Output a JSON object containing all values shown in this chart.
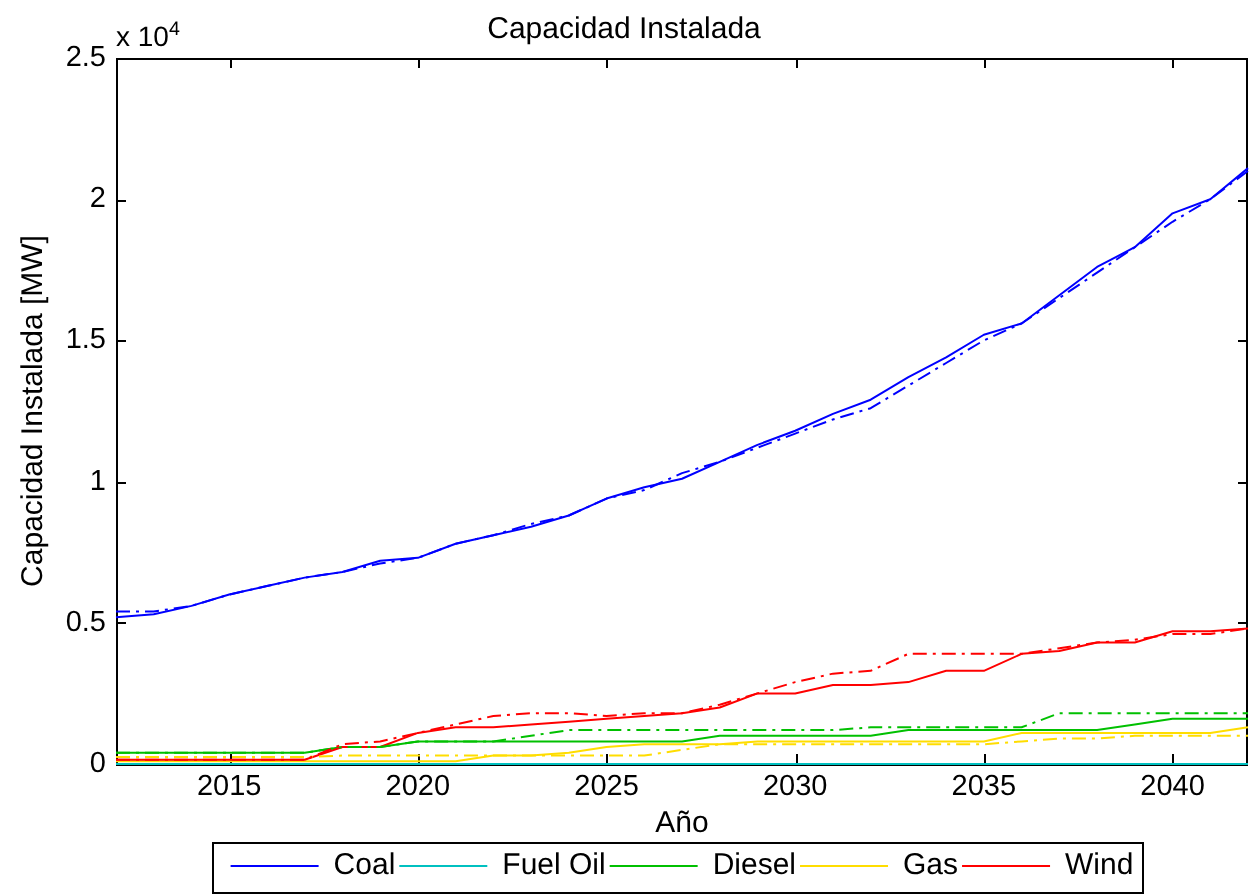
{
  "chart_data": {
    "type": "line",
    "title": "Capacidad Instalada",
    "xlabel": "Año",
    "ylabel": "Capacidad Instalada [MW]",
    "annotations": [
      "x 10$^{4}$"
    ],
    "x": [
      2012,
      2013,
      2014,
      2015,
      2016,
      2017,
      2018,
      2019,
      2020,
      2021,
      2022,
      2023,
      2024,
      2025,
      2026,
      2027,
      2028,
      2029,
      2030,
      2031,
      2032,
      2033,
      2034,
      2035,
      2036,
      2037,
      2038,
      2039,
      2040,
      2041,
      2042
    ],
    "series": [
      {
        "name": "Coal",
        "color": "#0000ff",
        "line_style": "solid",
        "values": [
          0.52,
          0.53,
          0.56,
          0.6,
          0.63,
          0.66,
          0.68,
          0.72,
          0.73,
          0.78,
          0.81,
          0.84,
          0.88,
          0.94,
          0.98,
          1.01,
          1.07,
          1.13,
          1.18,
          1.24,
          1.29,
          1.37,
          1.44,
          1.52,
          1.56,
          1.66,
          1.76,
          1.83,
          1.95,
          2.0,
          2.11
        ]
      },
      {
        "name": "Fuel Oil",
        "color": "#00c0c0",
        "line_style": "solid",
        "values": [
          0,
          0,
          0,
          0,
          0,
          0,
          0,
          0,
          0,
          0,
          0,
          0,
          0,
          0,
          0,
          0,
          0,
          0,
          0,
          0,
          0,
          0,
          0,
          0,
          0,
          0,
          0,
          0,
          0,
          0,
          0
        ]
      },
      {
        "name": "Diesel",
        "color": "#00c000",
        "line_style": "solid",
        "values": [
          0.04,
          0.04,
          0.04,
          0.04,
          0.04,
          0.04,
          0.06,
          0.06,
          0.08,
          0.08,
          0.08,
          0.08,
          0.08,
          0.08,
          0.08,
          0.08,
          0.1,
          0.1,
          0.1,
          0.1,
          0.1,
          0.12,
          0.12,
          0.12,
          0.12,
          0.12,
          0.12,
          0.14,
          0.16,
          0.16,
          0.16
        ]
      },
      {
        "name": "Gas",
        "color": "#ffdd00",
        "line_style": "solid",
        "values": [
          0.01,
          0.01,
          0.01,
          0.01,
          0.01,
          0.01,
          0.01,
          0.01,
          0.01,
          0.01,
          0.03,
          0.03,
          0.04,
          0.06,
          0.07,
          0.07,
          0.07,
          0.08,
          0.08,
          0.08,
          0.08,
          0.08,
          0.08,
          0.08,
          0.11,
          0.11,
          0.11,
          0.11,
          0.11,
          0.11,
          0.13
        ]
      },
      {
        "name": "Wind",
        "color": "#ff0000",
        "line_style": "solid",
        "values": [
          0.015,
          0.015,
          0.015,
          0.015,
          0.015,
          0.015,
          0.06,
          0.06,
          0.11,
          0.13,
          0.13,
          0.14,
          0.15,
          0.16,
          0.17,
          0.18,
          0.2,
          0.25,
          0.25,
          0.28,
          0.28,
          0.29,
          0.33,
          0.33,
          0.39,
          0.4,
          0.43,
          0.43,
          0.47,
          0.47,
          0.48
        ]
      },
      {
        "color": "#0000ff",
        "line_style": "dashdot",
        "values": [
          0.54,
          0.54,
          0.56,
          0.6,
          0.63,
          0.66,
          0.68,
          0.71,
          0.73,
          0.78,
          0.81,
          0.85,
          0.88,
          0.94,
          0.97,
          1.03,
          1.07,
          1.12,
          1.17,
          1.22,
          1.26,
          1.34,
          1.42,
          1.5,
          1.56,
          1.65,
          1.74,
          1.83,
          1.92,
          2.0,
          2.1
        ]
      },
      {
        "color": "#00c000",
        "line_style": "dashdot",
        "values": [
          0.04,
          0.04,
          0.04,
          0.04,
          0.04,
          0.04,
          0.06,
          0.06,
          0.08,
          0.08,
          0.08,
          0.1,
          0.12,
          0.12,
          0.12,
          0.12,
          0.12,
          0.12,
          0.12,
          0.12,
          0.13,
          0.13,
          0.13,
          0.13,
          0.13,
          0.18,
          0.18,
          0.18,
          0.18,
          0.18,
          0.18
        ]
      },
      {
        "color": "#ffdd00",
        "line_style": "dashdot",
        "values": [
          0.025,
          0.025,
          0.025,
          0.025,
          0.025,
          0.025,
          0.03,
          0.03,
          0.03,
          0.03,
          0.03,
          0.03,
          0.03,
          0.03,
          0.03,
          0.05,
          0.07,
          0.07,
          0.07,
          0.07,
          0.07,
          0.07,
          0.07,
          0.07,
          0.08,
          0.09,
          0.09,
          0.1,
          0.1,
          0.1,
          0.1
        ]
      },
      {
        "color": "#ff0000",
        "line_style": "dashdot",
        "values": [
          0.015,
          0.015,
          0.015,
          0.015,
          0.015,
          0.015,
          0.07,
          0.08,
          0.11,
          0.14,
          0.17,
          0.18,
          0.18,
          0.17,
          0.18,
          0.18,
          0.21,
          0.25,
          0.29,
          0.32,
          0.33,
          0.39,
          0.39,
          0.39,
          0.39,
          0.41,
          0.43,
          0.44,
          0.46,
          0.46,
          0.48
        ]
      }
    ],
    "xlim": [
      2012,
      2042
    ],
    "xticks": [
      2015,
      2020,
      2025,
      2030,
      2035,
      2040
    ],
    "ylim": [
      0,
      2.5
    ],
    "yticks": [
      0,
      0.5,
      1,
      1.5,
      2,
      2.5
    ],
    "legend": "bottom"
  }
}
